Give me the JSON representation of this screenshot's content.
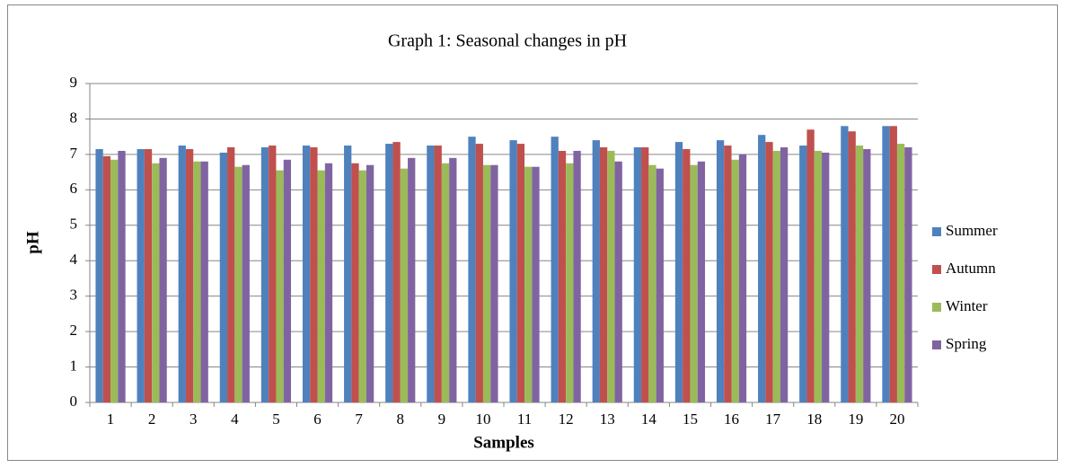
{
  "chart_data": {
    "type": "bar",
    "title": "Graph 1: Seasonal changes in pH",
    "x_label": "Samples",
    "y_label": "pH",
    "categories": [
      "1",
      "2",
      "3",
      "4",
      "5",
      "6",
      "7",
      "8",
      "9",
      "10",
      "11",
      "12",
      "13",
      "14",
      "15",
      "16",
      "17",
      "18",
      "19",
      "20"
    ],
    "series": [
      {
        "name": "Summer",
        "color": "#4f81bd",
        "values": [
          7.15,
          7.15,
          7.25,
          7.05,
          7.2,
          7.25,
          7.25,
          7.3,
          7.25,
          7.5,
          7.4,
          7.5,
          7.4,
          7.2,
          7.35,
          7.4,
          7.55,
          7.25,
          7.8,
          7.8
        ]
      },
      {
        "name": "Autumn",
        "color": "#c0504d",
        "values": [
          6.95,
          7.15,
          7.15,
          7.2,
          7.25,
          7.2,
          6.75,
          7.35,
          7.25,
          7.3,
          7.3,
          7.1,
          7.2,
          7.2,
          7.15,
          7.25,
          7.35,
          7.7,
          7.65,
          7.8
        ]
      },
      {
        "name": "Winter",
        "color": "#9bbb59",
        "values": [
          6.85,
          6.75,
          6.8,
          6.65,
          6.55,
          6.55,
          6.55,
          6.6,
          6.75,
          6.7,
          6.65,
          6.75,
          7.1,
          6.7,
          6.7,
          6.85,
          7.1,
          7.1,
          7.25,
          7.3
        ]
      },
      {
        "name": "Spring",
        "color": "#8064a2",
        "values": [
          7.1,
          6.9,
          6.8,
          6.7,
          6.85,
          6.75,
          6.7,
          6.9,
          6.9,
          6.7,
          6.65,
          7.1,
          6.8,
          6.6,
          6.8,
          7.0,
          7.2,
          7.05,
          7.15,
          7.2
        ]
      }
    ],
    "ylim": [
      0,
      9
    ],
    "yticks": [
      0,
      1,
      2,
      3,
      4,
      5,
      6,
      7,
      8,
      9
    ],
    "grid": true,
    "legend": "right"
  }
}
